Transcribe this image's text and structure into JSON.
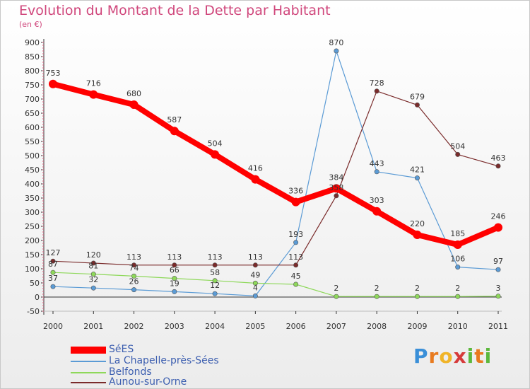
{
  "title": "Evolution du Montant de la Dette par Habitant",
  "subtitle": "(en €)",
  "logo": [
    "P",
    "r",
    "o",
    "x",
    "i",
    "t",
    "i"
  ],
  "logo_colors": [
    "#3a8fd8",
    "#e87a1e",
    "#f0b428",
    "#d63a3a",
    "#5cb83c",
    "#e87a1e",
    "#5cb83c"
  ],
  "chart_data": {
    "type": "line",
    "categories": [
      "2000",
      "2001",
      "2002",
      "2003",
      "2004",
      "2005",
      "2006",
      "2007",
      "2008",
      "2009",
      "2010",
      "2011"
    ],
    "ylim": [
      -50,
      900
    ],
    "yticks": [
      "-50",
      "0",
      "50",
      "100",
      "150",
      "200",
      "250",
      "300",
      "350",
      "400",
      "450",
      "500",
      "550",
      "600",
      "650",
      "700",
      "750",
      "800",
      "850",
      "900"
    ],
    "grid": false,
    "legend_position": "bottom-left",
    "series": [
      {
        "name": "SéES",
        "color": "#ff0000",
        "values": [
          753,
          716,
          680,
          587,
          504,
          416,
          336,
          384,
          303,
          220,
          185,
          246
        ]
      },
      {
        "name": "La Chapelle-près-Sées",
        "color": "#5b9bd5",
        "values": [
          37,
          32,
          26,
          19,
          12,
          4,
          193,
          870,
          443,
          421,
          106,
          97
        ]
      },
      {
        "name": "Belfonds",
        "color": "#8ed85a",
        "values": [
          87,
          81,
          74,
          66,
          58,
          49,
          45,
          2,
          2,
          2,
          2,
          3
        ]
      },
      {
        "name": "Aunou-sur-Orne",
        "color": "#7a2b2b",
        "values": [
          127,
          120,
          113,
          113,
          113,
          113,
          113,
          358,
          728,
          679,
          504,
          463
        ]
      }
    ]
  }
}
